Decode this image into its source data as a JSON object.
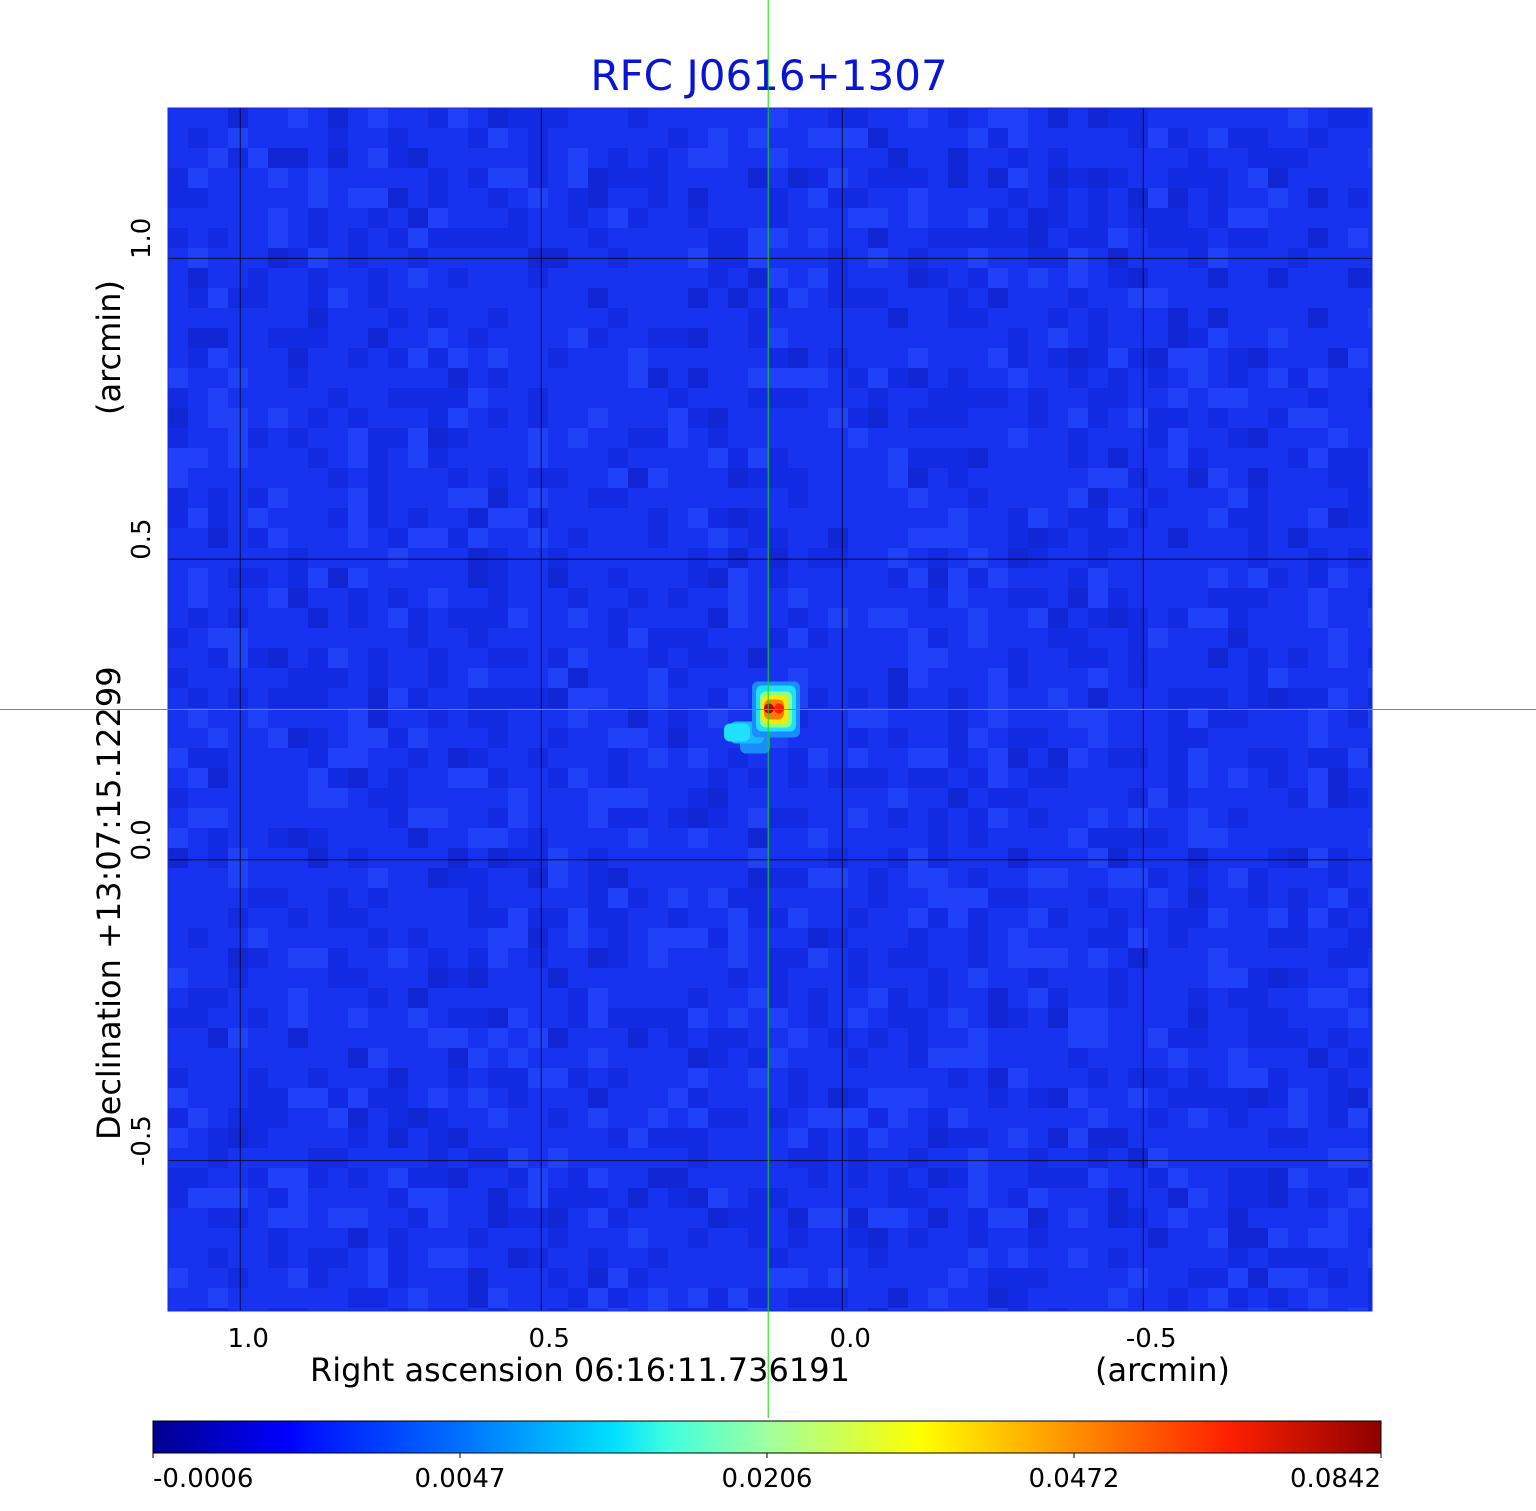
{
  "chart_data": {
    "type": "heatmap",
    "title": "RFC J0616+1307",
    "xlabel": "Right ascension  06:16:11.736191",
    "xlabel_unit": "(arcmin)",
    "ylabel": "Declination  +13:07:15.12299",
    "ylabel_unit": "(arcmin)",
    "x_ticks": [
      {
        "value": 1.0,
        "label": "1.0"
      },
      {
        "value": 0.5,
        "label": "0.5"
      },
      {
        "value": 0.0,
        "label": "0.0"
      },
      {
        "value": -0.5,
        "label": "-0.5"
      }
    ],
    "y_ticks": [
      {
        "value": 1.0,
        "label": "1.0"
      },
      {
        "value": 0.5,
        "label": "0.5"
      },
      {
        "value": 0.0,
        "label": "0.0"
      },
      {
        "value": -0.5,
        "label": "-0.5"
      }
    ],
    "xlim": [
      1.12,
      -0.88
    ],
    "ylim": [
      -0.75,
      1.25
    ],
    "x_inverted": true,
    "grid": true,
    "grid_color": "#000000",
    "crosshair": {
      "x": 0.123,
      "y": 0.25,
      "color": "#00e000"
    },
    "source_peak": {
      "x": 0.12,
      "y": 0.25,
      "value": 0.0842
    },
    "colormap": "jet",
    "colorbar": {
      "position": "bottom",
      "ticks": [
        "-0.0006",
        "0.0047",
        "0.0206",
        "0.0472",
        "0.0842"
      ],
      "min": -0.0006,
      "max": 0.0842
    }
  },
  "colors": {
    "title": "#0a14d4",
    "background_map": "#1733ef"
  }
}
